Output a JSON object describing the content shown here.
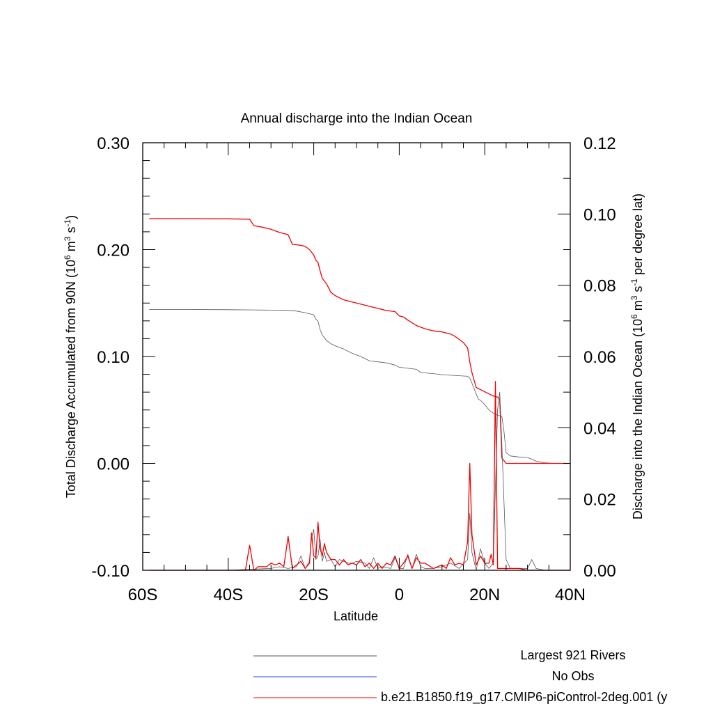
{
  "chart_data": {
    "type": "line",
    "title": "Annual discharge into the Indian Ocean",
    "xlabel": "Latitude",
    "ylabel_left": "Total Discharge Accumulated from 90N (10^6 m^3 s^-1)",
    "ylabel_left_parts": [
      "Total Discharge Accumulated from 90N (10",
      "6",
      " m",
      "3",
      " s",
      "-1",
      ")"
    ],
    "ylabel_right": "Discharge into the Indian Ocean (10^6 m^3 s^-1 per degree lat)",
    "ylabel_right_parts": [
      "Discharge into the Indian Ocean (10",
      "6",
      " m",
      "3",
      " s",
      "-1",
      " per degree lat)"
    ],
    "xlim": [
      -60,
      40
    ],
    "ylim_left": [
      -0.1,
      0.3
    ],
    "ylim_right": [
      0.0,
      0.12
    ],
    "x_ticks": [
      -60,
      -40,
      -20,
      0,
      20,
      40
    ],
    "x_tick_labels": [
      "60S",
      "40S",
      "20S",
      "0",
      "20N",
      "40N"
    ],
    "y_left_ticks": [
      -0.1,
      0.0,
      0.1,
      0.2,
      0.3
    ],
    "y_left_tick_labels": [
      "-0.10",
      "0.00",
      "0.10",
      "0.20",
      "0.30"
    ],
    "y_right_ticks": [
      0.0,
      0.02,
      0.04,
      0.06,
      0.08,
      0.1,
      0.12
    ],
    "y_right_tick_labels": [
      "0.00",
      "0.02",
      "0.04",
      "0.06",
      "0.08",
      "0.10",
      "0.12"
    ],
    "legend": [
      {
        "name": "Largest 921 Rivers",
        "color": "#555555"
      },
      {
        "name": "No Obs",
        "color": "#3344dd"
      },
      {
        "name": "b.e21.B1850.f19_g17.CMIP6-piControl-2deg.001 (y",
        "color": "#ee0000"
      }
    ],
    "series": [
      {
        "name": "Largest 921 Rivers",
        "axis": "left",
        "color": "#555555",
        "x": [
          -58.5,
          -50,
          -40,
          -34,
          -30,
          -26,
          -24,
          -22,
          -20,
          -19.5,
          -19,
          -18.5,
          -18,
          -17,
          -16,
          -15,
          -13,
          -11,
          -9,
          -7,
          -5,
          -3,
          -1,
          0,
          2,
          4,
          5,
          8,
          10,
          12,
          14,
          16,
          16.5,
          17,
          18,
          18.5,
          19,
          20,
          21,
          22,
          23,
          24,
          24.5,
          25,
          26,
          28,
          30,
          31,
          32,
          34,
          36,
          40
        ],
        "values": [
          0.144,
          0.144,
          0.1438,
          0.1436,
          0.1434,
          0.1432,
          0.1425,
          0.141,
          0.139,
          0.135,
          0.133,
          0.125,
          0.12,
          0.115,
          0.112,
          0.11,
          0.107,
          0.103,
          0.1,
          0.096,
          0.095,
          0.094,
          0.092,
          0.09,
          0.089,
          0.088,
          0.085,
          0.084,
          0.083,
          0.0825,
          0.082,
          0.0815,
          0.08,
          0.075,
          0.065,
          0.06,
          0.059,
          0.055,
          0.05,
          0.047,
          0.045,
          0.044,
          0.03,
          0.01,
          0.007,
          0.006,
          0.0055,
          0.004,
          0.002,
          0.0005,
          0.0,
          0.0
        ]
      },
      {
        "name": "b.e21.B1850.f19_g17.CMIP6-piControl-2deg.001 (y",
        "axis": "left",
        "color": "#ee0000",
        "x": [
          -58.5,
          -50,
          -40,
          -35,
          -34,
          -32,
          -30,
          -28,
          -26,
          -25,
          -23,
          -22,
          -21,
          -20,
          -19.5,
          -19,
          -18.5,
          -18,
          -17,
          -16,
          -15,
          -13,
          -11,
          -9,
          -7,
          -5,
          -3,
          -1,
          0,
          1,
          2,
          4,
          6,
          8,
          10,
          12,
          13,
          14,
          15,
          16,
          16.5,
          17,
          18,
          19,
          20,
          21,
          22,
          23,
          23.5,
          24,
          25,
          28,
          30,
          32,
          36,
          40
        ],
        "values": [
          0.229,
          0.229,
          0.2288,
          0.2285,
          0.2225,
          0.221,
          0.219,
          0.216,
          0.214,
          0.205,
          0.204,
          0.203,
          0.2,
          0.195,
          0.19,
          0.188,
          0.18,
          0.173,
          0.168,
          0.16,
          0.157,
          0.153,
          0.151,
          0.149,
          0.147,
          0.145,
          0.143,
          0.142,
          0.138,
          0.137,
          0.134,
          0.129,
          0.126,
          0.124,
          0.123,
          0.121,
          0.119,
          0.116,
          0.113,
          0.108,
          0.095,
          0.085,
          0.071,
          0.069,
          0.067,
          0.065,
          0.063,
          0.062,
          0.06,
          0.005,
          0.0,
          0.0,
          0.0,
          0.0,
          0.0,
          0.0
        ]
      },
      {
        "name": "Largest 921 Rivers",
        "axis": "right",
        "color": "#555555",
        "x": [
          -58.5,
          -40,
          -30,
          -28,
          -26,
          -24,
          -23,
          -22,
          -21,
          -20.5,
          -20,
          -19.5,
          -19,
          -18.5,
          -18,
          -17.5,
          -17,
          -16,
          -15,
          -14,
          -13,
          -12,
          -11,
          -10,
          -8,
          -7,
          -6,
          -5,
          -4,
          -2,
          -1,
          0,
          1,
          2,
          3,
          4,
          5,
          6,
          8,
          10,
          12,
          14,
          16,
          16.5,
          17,
          18,
          19,
          20,
          21,
          22,
          23,
          23.5,
          24,
          25,
          26,
          28,
          30,
          31,
          32,
          34,
          40
        ],
        "values": [
          0.0,
          0.0,
          0.0005,
          0.001,
          0.0005,
          0.001,
          0.004,
          0.0005,
          0.0025,
          0.009,
          0.0115,
          0.003,
          0.004,
          0.0085,
          0.0025,
          0.005,
          0.0025,
          0.003,
          0.001,
          0.003,
          0.0025,
          0.002,
          0.002,
          0.0025,
          0.002,
          0.0005,
          0.0035,
          0.0005,
          0.001,
          0.0005,
          0.0035,
          0.0005,
          0.0005,
          0.0045,
          0.0005,
          0.0045,
          0.001,
          0.0005,
          0.0005,
          0.001,
          0.002,
          0.0005,
          0.003,
          0.016,
          0.005,
          0.0,
          0.006,
          0.002,
          0.0005,
          0.002,
          0.045,
          0.05,
          0.035,
          0.003,
          0.0005,
          0.0005,
          0.0005,
          0.003,
          0.0005,
          0.0,
          0.0
        ]
      },
      {
        "name": "b.e21.B1850.f19_g17.CMIP6-piControl-2deg.001 (y",
        "axis": "right",
        "color": "#ee0000",
        "x": [
          -58.5,
          -40,
          -36,
          -35,
          -34,
          -33,
          -31,
          -30,
          -29,
          -28,
          -27,
          -26,
          -25,
          -24,
          -23,
          -22,
          -21,
          -20.5,
          -20,
          -19.5,
          -19,
          -18.5,
          -18,
          -17.5,
          -17,
          -16,
          -15,
          -14,
          -13,
          -12,
          -11,
          -10,
          -9,
          -8,
          -7,
          -6,
          -5,
          -4,
          -3,
          -2,
          -1,
          0,
          1,
          2,
          3,
          4,
          5,
          6,
          8,
          10,
          11,
          12,
          13,
          14,
          15,
          16,
          16.5,
          17,
          18,
          19,
          20,
          21,
          21.5,
          22,
          22.5,
          23,
          23.5,
          24,
          25,
          28,
          30,
          32,
          34,
          40
        ],
        "values": [
          0.0,
          0.0,
          0.0,
          0.007,
          0.0,
          0.001,
          0.001,
          0.002,
          0.0015,
          0.002,
          0.001,
          0.0095,
          0.0005,
          0.0015,
          0.0025,
          0.0005,
          0.002,
          0.0105,
          0.004,
          0.0035,
          0.0135,
          0.006,
          0.004,
          0.0075,
          0.005,
          0.003,
          0.003,
          0.0015,
          0.003,
          0.0015,
          0.002,
          0.0015,
          0.003,
          0.001,
          0.002,
          0.0005,
          0.002,
          0.0005,
          0.002,
          0.0015,
          0.004,
          0.0005,
          0.002,
          0.004,
          0.0005,
          0.0035,
          0.002,
          0.002,
          0.0005,
          0.0015,
          0.0005,
          0.0035,
          0.0015,
          0.002,
          0.0015,
          0.008,
          0.03,
          0.01,
          0.0015,
          0.004,
          0.002,
          0.002,
          0.0045,
          0.0015,
          0.053,
          0.0005,
          0.0005,
          0.0005,
          0.0005,
          0.0005,
          0.0,
          0.0,
          0.0,
          0.0
        ]
      }
    ]
  }
}
